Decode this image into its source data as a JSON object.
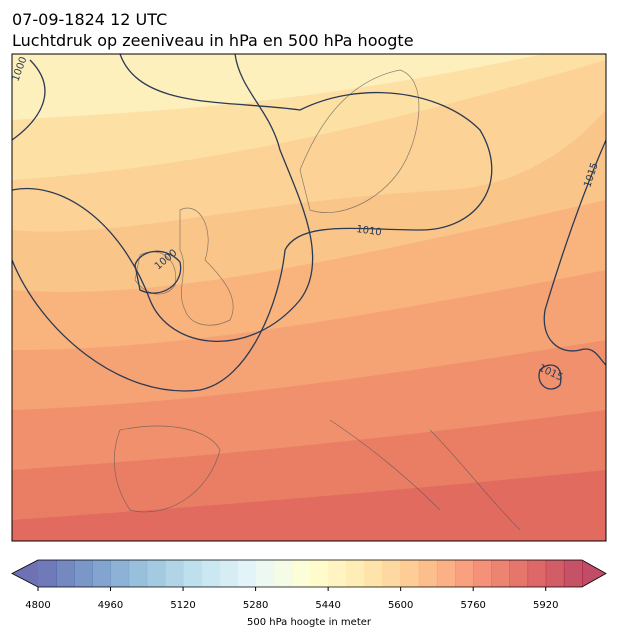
{
  "header": {
    "date": "07-09-1824 12 UTC",
    "title": "Luchtdruk op zeeniveau in hPa en 500 hPa hoogte"
  },
  "map": {
    "isobar_labels": [
      "1000",
      "1015",
      "1010",
      "1000",
      "1015"
    ]
  },
  "colorbar": {
    "range": [
      4800,
      6000
    ],
    "step": 40,
    "ticks": [
      4800,
      4960,
      5120,
      5280,
      5440,
      5600,
      5760,
      5920
    ],
    "label": "500 hPa hoogte in meter"
  }
}
